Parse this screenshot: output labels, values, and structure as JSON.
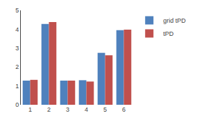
{
  "chart_data": {
    "type": "bar",
    "categories": [
      "1",
      "2",
      "3",
      "4",
      "5",
      "6"
    ],
    "series": [
      {
        "name": "grid tPD",
        "color": "#4f81bd",
        "values": [
          1.28,
          4.28,
          1.28,
          1.3,
          2.75,
          3.95
        ]
      },
      {
        "name": "tPD",
        "color": "#c0504d",
        "values": [
          1.32,
          4.38,
          1.28,
          1.23,
          2.62,
          3.98
        ]
      }
    ],
    "ylim": [
      0,
      5
    ],
    "yticks": [
      0,
      1,
      2,
      3,
      4,
      5
    ],
    "grid": false,
    "legend": "right"
  }
}
